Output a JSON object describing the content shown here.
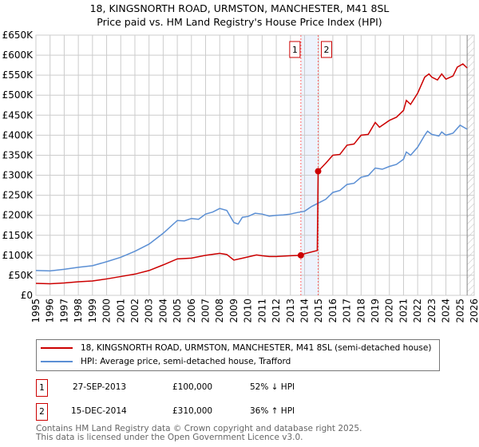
{
  "chart_data": {
    "type": "line",
    "title": "18, KINGSNORTH ROAD, URMSTON, MANCHESTER, M41 8SL",
    "subtitle": "Price paid vs. HM Land Registry's House Price Index (HPI)",
    "xlim": [
      1995,
      2026
    ],
    "ylim": [
      0,
      650000
    ],
    "x_ticks": [
      "1995",
      "1996",
      "1997",
      "1998",
      "1999",
      "2000",
      "2001",
      "2002",
      "2003",
      "2004",
      "2005",
      "2006",
      "2007",
      "2008",
      "2009",
      "2010",
      "2011",
      "2012",
      "2013",
      "2014",
      "2015",
      "2016",
      "2017",
      "2018",
      "2019",
      "2020",
      "2021",
      "2022",
      "2023",
      "2024",
      "2025",
      "2026"
    ],
    "y_ticks": [
      {
        "v": 0,
        "label": "£0"
      },
      {
        "v": 50000,
        "label": "£50K"
      },
      {
        "v": 100000,
        "label": "£100K"
      },
      {
        "v": 150000,
        "label": "£150K"
      },
      {
        "v": 200000,
        "label": "£200K"
      },
      {
        "v": 250000,
        "label": "£250K"
      },
      {
        "v": 300000,
        "label": "£300K"
      },
      {
        "v": 350000,
        "label": "£350K"
      },
      {
        "v": 400000,
        "label": "£400K"
      },
      {
        "v": 450000,
        "label": "£450K"
      },
      {
        "v": 500000,
        "label": "£500K"
      },
      {
        "v": 550000,
        "label": "£550K"
      },
      {
        "v": 600000,
        "label": "£600K"
      },
      {
        "v": 650000,
        "label": "£650K"
      }
    ],
    "grid": true,
    "series": [
      {
        "name": "18, KINGSNORTH ROAD, URMSTON, MANCHESTER, M41 8SL (semi-detached house)",
        "color": "#cc0000",
        "x": [
          1995,
          1996,
          1997,
          1998,
          1999,
          2000,
          2001,
          2002,
          2003,
          2004,
          2005,
          2006,
          2007,
          2008,
          2008.5,
          2009,
          2009.5,
          2010,
          2010.6,
          2011,
          2011.5,
          2012,
          2013,
          2013.74,
          2014,
          2014.9,
          2014.96,
          2015.5,
          2016,
          2016.5,
          2017,
          2017.5,
          2018,
          2018.5,
          2019,
          2019.3,
          2020,
          2020.5,
          2021,
          2021.2,
          2021.5,
          2022,
          2022.5,
          2022.8,
          2023,
          2023.4,
          2023.7,
          2024,
          2024.5,
          2024.8,
          2025.2,
          2025.5
        ],
        "y": [
          30000,
          29000,
          31000,
          34000,
          36000,
          41000,
          47000,
          53000,
          62000,
          76000,
          91000,
          93000,
          100000,
          105000,
          102000,
          88000,
          92000,
          96000,
          101000,
          99000,
          97000,
          97000,
          99000,
          100000,
          104000,
          112000,
          310000,
          330000,
          350000,
          352000,
          375000,
          378000,
          400000,
          402000,
          432000,
          420000,
          437000,
          445000,
          462000,
          487000,
          477000,
          505000,
          545000,
          553000,
          545000,
          538000,
          553000,
          540000,
          548000,
          570000,
          578000,
          568000
        ]
      },
      {
        "name": "HPI: Average price, semi-detached house, Trafford",
        "color": "#5b8fd4",
        "x": [
          1995,
          1996,
          1997,
          1998,
          1999,
          2000,
          2001,
          2002,
          2003,
          2004,
          2005,
          2005.5,
          2006,
          2006.5,
          2007,
          2007.5,
          2008,
          2008.5,
          2009,
          2009.3,
          2009.6,
          2010,
          2010.5,
          2011,
          2011.5,
          2012,
          2012.5,
          2013,
          2013.5,
          2014,
          2014.5,
          2015,
          2015.5,
          2016,
          2016.5,
          2017,
          2017.5,
          2018,
          2018.5,
          2019,
          2019.5,
          2020,
          2020.5,
          2021,
          2021.2,
          2021.5,
          2022,
          2022.5,
          2022.7,
          2023,
          2023.5,
          2023.7,
          2024,
          2024.5,
          2025,
          2025.5
        ],
        "y": [
          62000,
          61000,
          65000,
          70000,
          74000,
          84000,
          95000,
          110000,
          128000,
          155000,
          187000,
          186000,
          192000,
          190000,
          203000,
          208000,
          217000,
          212000,
          182000,
          178000,
          195000,
          197000,
          205000,
          203000,
          198000,
          200000,
          201000,
          203000,
          207000,
          210000,
          222000,
          231000,
          240000,
          257000,
          262000,
          277000,
          280000,
          295000,
          299000,
          318000,
          315000,
          322000,
          327000,
          340000,
          358000,
          350000,
          370000,
          400000,
          410000,
          402000,
          398000,
          408000,
          400000,
          405000,
          425000,
          415000
        ]
      }
    ],
    "sales": [
      {
        "id": "1",
        "x": 2013.74,
        "y": 100000
      },
      {
        "id": "2",
        "x": 2014.96,
        "y": 310000
      }
    ],
    "forecast_from": 2025.5,
    "legend_placement": "bottom"
  },
  "title_line1": "18, KINGSNORTH ROAD, URMSTON, MANCHESTER, M41 8SL",
  "title_line2": "Price paid vs. HM Land Registry's House Price Index (HPI)",
  "legend": [
    "18, KINGSNORTH ROAD, URMSTON, MANCHESTER, M41 8SL (semi-detached house)",
    "HPI: Average price, semi-detached house, Trafford"
  ],
  "transactions": [
    {
      "id": "1",
      "date": "27-SEP-2013",
      "price": "£100,000",
      "hpi": "52% ↓ HPI"
    },
    {
      "id": "2",
      "date": "15-DEC-2014",
      "price": "£310,000",
      "hpi": "36% ↑ HPI"
    }
  ],
  "footer": [
    "Contains HM Land Registry data © Crown copyright and database right 2025.",
    "This data is licensed under the Open Government Licence v3.0."
  ]
}
